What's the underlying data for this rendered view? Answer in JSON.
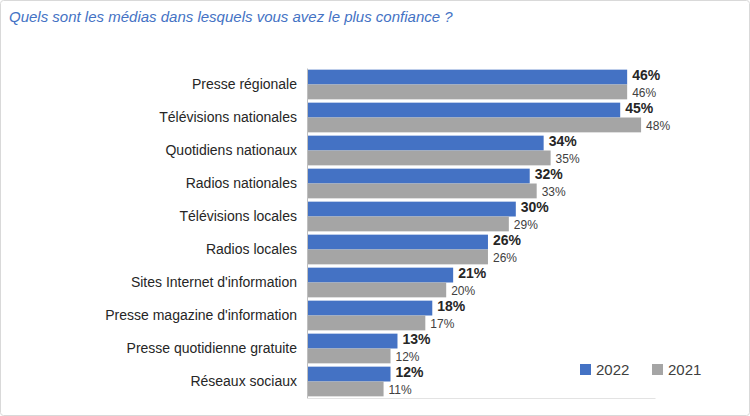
{
  "chart_data": {
    "type": "bar",
    "orientation": "horizontal",
    "title": "Quels sont les médias dans lesquels vous avez le plus confiance ?",
    "categories": [
      "Presse régionale",
      "Télévisions nationales",
      "Quotidiens nationaux",
      "Radios nationales",
      "Télévisions locales",
      "Radios locales",
      "Sites Internet d'information",
      "Presse magazine d'information",
      "Presse quotidienne gratuite",
      "Réseaux sociaux"
    ],
    "series": [
      {
        "name": "2022",
        "color": "#4472c4",
        "values": [
          46,
          45,
          34,
          32,
          30,
          26,
          21,
          18,
          13,
          12
        ],
        "value_labels": [
          "46%",
          "45%",
          "34%",
          "32%",
          "30%",
          "26%",
          "21%",
          "18%",
          "13%",
          "12%"
        ]
      },
      {
        "name": "2021",
        "color": "#a5a5a5",
        "values": [
          46,
          48,
          35,
          33,
          29,
          26,
          20,
          17,
          12,
          11
        ],
        "value_labels": [
          "46%",
          "48%",
          "35%",
          "33%",
          "29%",
          "26%",
          "20%",
          "17%",
          "12%",
          "11%"
        ]
      }
    ],
    "xlim": [
      0,
      50
    ],
    "data_labels": true,
    "tick_labels": "y",
    "legend": "bottom-right",
    "grid": false
  }
}
